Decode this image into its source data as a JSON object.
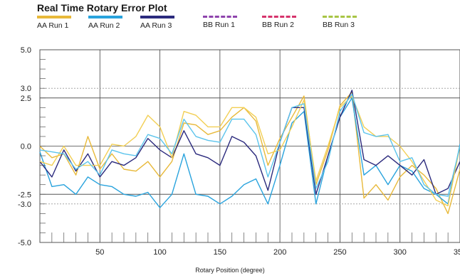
{
  "chart_data": {
    "type": "line",
    "title": "Real Time Rotary Error Plot",
    "xlabel": "Rotary Position (degree)",
    "ylabel": "",
    "xlim": [
      0,
      350
    ],
    "ylim": [
      -5,
      5
    ],
    "xticks": [
      50,
      100,
      150,
      200,
      250,
      300,
      350
    ],
    "xtick_labels": [
      "50",
      "100",
      "150",
      "200",
      "250",
      "300",
      "350"
    ],
    "yticks": [
      5,
      3,
      2.5,
      0,
      -2.5,
      -3,
      -5
    ],
    "ytick_labels": [
      "5.0",
      "3.0",
      "2.5",
      "0.0",
      "-2.5",
      "-3.0",
      "-5.0"
    ],
    "reference_lines": [
      3,
      2.5,
      -2.5,
      -3
    ],
    "grid": true,
    "legend_position": "top",
    "series": [
      {
        "name": "AA Run 1",
        "color": "#e8b93a",
        "dash": "solid",
        "x": [
          0,
          10,
          20,
          30,
          40,
          50,
          60,
          70,
          80,
          90,
          100,
          110,
          120,
          130,
          140,
          150,
          160,
          170,
          180,
          190,
          200,
          210,
          220,
          230,
          240,
          250,
          260,
          270,
          280,
          290,
          300,
          310,
          320,
          330,
          340,
          350
        ],
        "y": [
          0,
          -0.6,
          -0.4,
          -1.5,
          0.5,
          -1.2,
          -0.4,
          -1.2,
          -1.3,
          -0.8,
          -1.6,
          -0.8,
          1.2,
          1.1,
          0.6,
          0.8,
          1.5,
          2.0,
          1.3,
          -1.0,
          0.4,
          1.5,
          2.6,
          -2.0,
          -0.2,
          2.1,
          2.8,
          -2.7,
          -2.0,
          -2.8,
          -1.6,
          -1.0,
          -1.5,
          -2.2,
          -3.5,
          -1.2
        ]
      },
      {
        "name": "AA Run 2",
        "color": "#29a3dd",
        "dash": "solid",
        "x": [
          0,
          10,
          20,
          30,
          40,
          50,
          60,
          70,
          80,
          90,
          100,
          110,
          120,
          130,
          140,
          150,
          160,
          170,
          180,
          190,
          200,
          210,
          220,
          230,
          240,
          250,
          260,
          270,
          280,
          290,
          300,
          310,
          320,
          330,
          340,
          350
        ],
        "y": [
          -0.3,
          -2.1,
          -2.0,
          -2.5,
          -1.6,
          -2.0,
          -2.1,
          -2.5,
          -2.6,
          -2.4,
          -3.2,
          -2.5,
          -0.4,
          -2.5,
          -2.6,
          -3.0,
          -2.6,
          -2.0,
          -1.7,
          -3.0,
          -1.0,
          1.2,
          1.8,
          -3.0,
          -0.5,
          1.5,
          2.5,
          -1.5,
          -1.0,
          -2.0,
          -1.0,
          -1.3,
          -2.2,
          -2.5,
          -3.0,
          0.1
        ]
      },
      {
        "name": "AA Run 3",
        "color": "#2b2a7d",
        "dash": "solid",
        "x": [
          0,
          10,
          20,
          30,
          40,
          50,
          60,
          70,
          80,
          90,
          100,
          110,
          120,
          130,
          140,
          150,
          160,
          170,
          180,
          190,
          200,
          210,
          220,
          230,
          240,
          250,
          260,
          270,
          280,
          290,
          300,
          310,
          320,
          330,
          340,
          350
        ],
        "y": [
          -0.8,
          -1.6,
          -0.2,
          -1.3,
          -0.4,
          -1.6,
          -0.8,
          -1.0,
          -0.6,
          0.4,
          -0.2,
          -0.6,
          0.8,
          -0.4,
          -0.6,
          -1.0,
          0.5,
          0.2,
          -0.5,
          -2.3,
          0.2,
          2.0,
          2.0,
          -2.5,
          -0.5,
          1.5,
          2.9,
          -0.7,
          -1.0,
          -0.5,
          -1.0,
          -1.5,
          -0.7,
          -2.5,
          -2.2,
          -0.8
        ]
      },
      {
        "name": "BB Run 1",
        "color": "#8e44ad",
        "dash": "dashed",
        "x": [],
        "y": []
      },
      {
        "name": "BB Run 2",
        "color": "#d6336c",
        "dash": "dashed",
        "x": [],
        "y": []
      },
      {
        "name": "BB Run 3",
        "color": "#a8c545",
        "dash": "dashed",
        "x": [],
        "y": []
      },
      {
        "name": "",
        "color": "#f2cf55",
        "dash": "solid",
        "x": [
          0,
          10,
          20,
          30,
          40,
          50,
          60,
          70,
          80,
          90,
          100,
          110,
          120,
          130,
          140,
          150,
          160,
          170,
          180,
          190,
          200,
          210,
          220,
          230,
          240,
          250,
          260,
          270,
          280,
          290,
          300,
          310,
          320,
          330,
          340,
          350
        ],
        "y": [
          -0.8,
          -1.0,
          0.0,
          -1.0,
          -1.0,
          -1.0,
          0.1,
          0.0,
          0.5,
          1.6,
          1.0,
          -0.6,
          1.8,
          1.6,
          1.0,
          1.0,
          2.0,
          2.0,
          1.5,
          -0.4,
          -0.2,
          1.0,
          2.4,
          -1.8,
          0.0,
          2.0,
          2.6,
          1.0,
          0.5,
          0.5,
          0.0,
          -0.8,
          -1.8,
          -2.8,
          -3.1,
          0.0
        ]
      },
      {
        "name": "",
        "color": "#5cc4ec",
        "dash": "solid",
        "x": [
          0,
          10,
          20,
          30,
          40,
          50,
          60,
          70,
          80,
          90,
          100,
          110,
          120,
          130,
          140,
          150,
          160,
          170,
          180,
          190,
          200,
          210,
          220,
          230,
          240,
          250,
          260,
          270,
          280,
          290,
          300,
          310,
          320,
          330,
          340,
          350
        ],
        "y": [
          -0.2,
          -0.3,
          -0.4,
          -1.2,
          -0.8,
          -1.5,
          -0.2,
          -0.4,
          -0.5,
          0.6,
          0.4,
          -0.4,
          1.4,
          0.5,
          0.3,
          0.2,
          1.4,
          1.4,
          0.6,
          -1.6,
          0.2,
          2.0,
          2.2,
          -2.2,
          -0.8,
          1.8,
          2.7,
          0.7,
          0.5,
          0.6,
          -0.8,
          -0.6,
          -2.0,
          -2.5,
          -2.6,
          0.0
        ]
      }
    ]
  }
}
